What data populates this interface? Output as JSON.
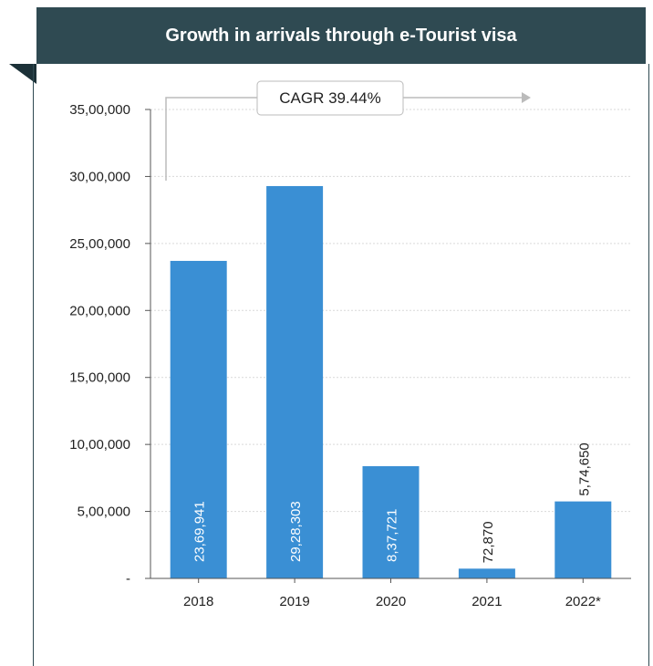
{
  "header": {
    "title": "Growth in arrivals through e-Tourist visa"
  },
  "annotation": {
    "cagr_label": "CAGR 39.44%"
  },
  "colors": {
    "header_bg": "#2f4a52",
    "bar": "#3a8fd4",
    "gridline": "#d9d9d9",
    "arrow": "#bbbbbb"
  },
  "chart_data": {
    "type": "bar",
    "title": "Growth in arrivals through e-Tourist visa",
    "xlabel": "",
    "ylabel": "",
    "categories": [
      "2018",
      "2019",
      "2020",
      "2021",
      "2022*"
    ],
    "values": [
      2369941,
      2928303,
      837721,
      72870,
      574650
    ],
    "value_labels": [
      "23,69,941",
      "29,28,303",
      "8,37,721",
      "72,870",
      "5,74,650"
    ],
    "ylim": [
      0,
      3500000
    ],
    "yticks": [
      0,
      500000,
      1000000,
      1500000,
      2000000,
      2500000,
      3000000,
      3500000
    ],
    "ytick_labels": [
      "-",
      "5,00,000",
      "10,00,000",
      "15,00,000",
      "20,00,000",
      "25,00,000",
      "30,00,000",
      "35,00,000"
    ],
    "grid": true,
    "legend": "none"
  }
}
